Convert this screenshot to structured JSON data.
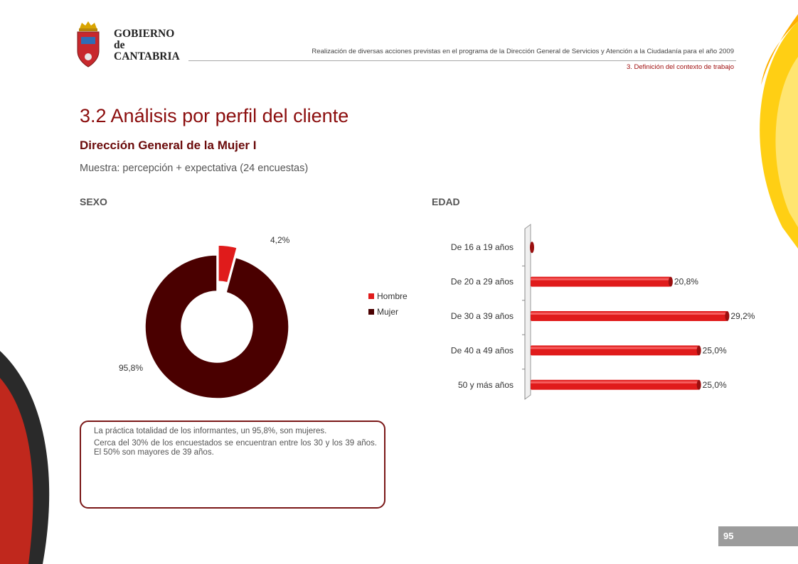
{
  "header": {
    "logo_lines": [
      "GOBIERNO",
      "de",
      "CANTABRIA"
    ],
    "program_text": "Realización de diversas acciones previstas en el programa de la Dirección General de Servicios y Atención a la Ciudadanía para el año 2009",
    "section_ref": "3. Definición del contexto de trabajo"
  },
  "page": {
    "title": "3.2 Análisis por perfil del cliente",
    "subtitle": "Dirección General de la Mujer I",
    "sample": "Muestra: percepción + expectativa (24 encuestas)",
    "page_number": "95"
  },
  "charts": {
    "sexo_label": "SEXO",
    "edad_label": "EDAD"
  },
  "comment": {
    "line1": "La práctica totalidad de los informantes, un 95,8%, son mujeres.",
    "line2": "Cerca del 30% de los encuestados se encuentran entre los 30 y los 39 años. El 50% son mayores de 39 años."
  },
  "colors": {
    "hombre": "#e01b1b",
    "mujer": "#4a0000",
    "bar": "#e01b1b",
    "title": "#8b0d0d",
    "accent_yellow": "#ffc400"
  },
  "chart_data": [
    {
      "type": "pie",
      "variant": "doughnut",
      "categories": [
        "Hombre",
        "Mujer"
      ],
      "values": [
        4.2,
        95.8
      ],
      "data_labels": [
        "4,2%",
        "95,8%"
      ],
      "legend": "right",
      "exploded": "Hombre"
    },
    {
      "type": "bar",
      "orientation": "horizontal",
      "categories": [
        "De 16 a 19 años",
        "De 20 a 29 años",
        "De 30 a 39 años",
        "De 40 a 49 años",
        "50 y más años"
      ],
      "values": [
        0,
        20.8,
        29.2,
        25.0,
        25.0
      ],
      "data_labels": [
        "",
        "20,8%",
        "29,2%",
        "25,0%",
        "25,0%"
      ],
      "xlim": [
        0,
        30
      ],
      "grid": false
    }
  ]
}
